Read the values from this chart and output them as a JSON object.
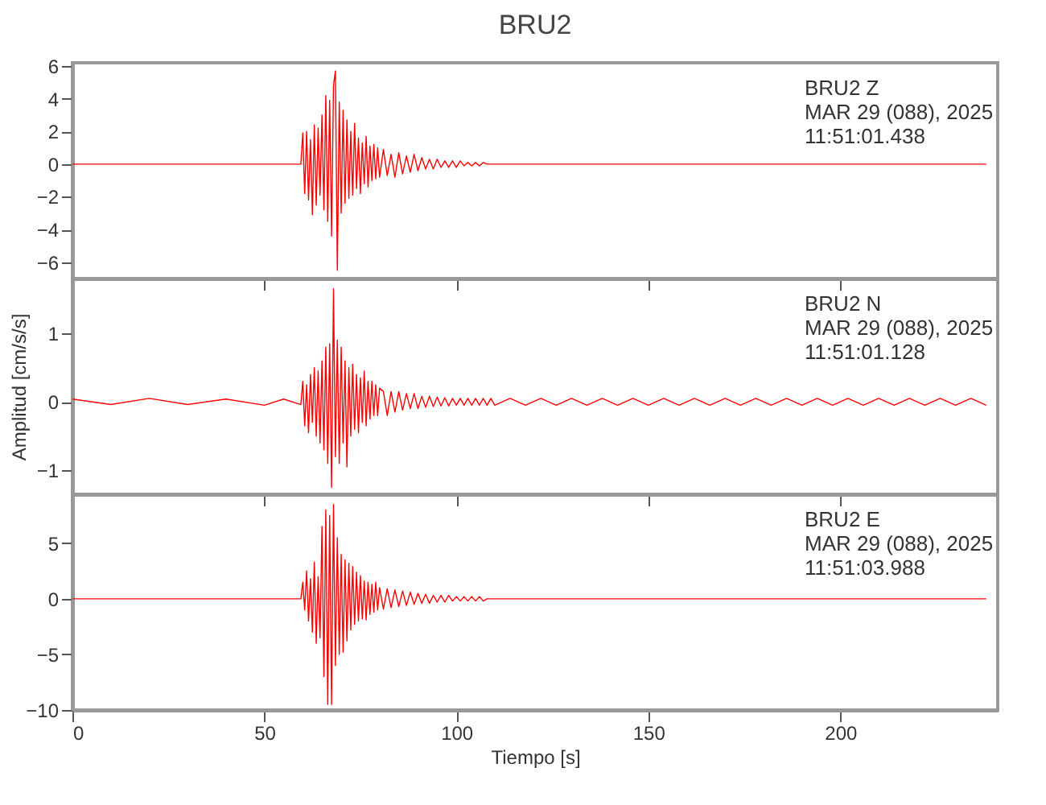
{
  "chart_data": [
    {
      "type": "line",
      "title": "BRU2",
      "annotations": [
        "BRU2   Z",
        "MAR 29 (088), 2025",
        "11:51:01.438"
      ],
      "xlim": [
        0,
        241
      ],
      "xticks": [
        0,
        50,
        100,
        150,
        200
      ],
      "ylim": [
        -7,
        6.2
      ],
      "yticks": [
        -6,
        -4,
        -2,
        0,
        2,
        4,
        6
      ],
      "tick_labels": "y",
      "grid": false,
      "x": [
        0,
        10,
        20,
        30,
        40,
        50,
        55,
        59.5,
        60,
        60.5,
        61,
        61.5,
        62,
        62.5,
        63,
        63.5,
        64,
        64.5,
        65,
        65.5,
        66,
        66.5,
        67,
        67.5,
        68,
        68.5,
        69,
        69.5,
        70,
        70.5,
        71,
        71.5,
        72,
        72.5,
        73,
        73.5,
        74,
        74.5,
        75,
        75.5,
        76,
        76.5,
        77,
        77.5,
        78,
        78.5,
        79,
        79.5,
        80,
        81,
        82,
        83,
        84,
        85,
        86,
        87,
        88,
        89,
        90,
        91,
        92,
        93,
        94,
        95,
        96,
        97,
        98,
        99,
        100,
        101,
        102,
        103,
        104,
        105,
        106,
        107,
        108,
        109,
        110,
        114,
        118,
        122,
        126,
        130,
        134,
        138,
        142,
        146,
        150,
        154,
        158,
        162,
        166,
        170,
        174,
        178,
        182,
        186,
        190,
        194,
        198,
        202,
        206,
        210,
        214,
        218,
        222,
        226,
        230,
        234,
        238
      ],
      "series": [
        {
          "color": "#ff0000",
          "values": [
            0,
            0,
            0,
            0,
            0,
            0,
            0,
            0,
            1.9,
            -1.8,
            2.0,
            -2.2,
            1.5,
            -3.1,
            2.4,
            -2.5,
            2.2,
            -1.9,
            3.0,
            -2.8,
            4.2,
            -3.5,
            3.9,
            -4.4,
            4.8,
            5.7,
            -6.5,
            3.8,
            -3.0,
            3.3,
            -2.4,
            2.7,
            -2.1,
            2.0,
            -1.9,
            2.5,
            -1.5,
            1.6,
            -1.8,
            1.3,
            -1.2,
            1.7,
            -1.4,
            1.1,
            -1.0,
            1.2,
            -0.9,
            1.0,
            -0.8,
            0.9,
            -0.7,
            0.6,
            -0.8,
            0.7,
            -0.6,
            0.5,
            -0.5,
            0.6,
            -0.4,
            0.4,
            -0.3,
            0.3,
            -0.3,
            0.3,
            -0.2,
            0.2,
            -0.2,
            0.2,
            -0.2,
            0.2,
            -0.1,
            0.1,
            -0.1,
            0.1,
            -0.1,
            0.1,
            0,
            0,
            0,
            0,
            0,
            0,
            0,
            0,
            0,
            0,
            0,
            0,
            0,
            0,
            0,
            0,
            0,
            0,
            0,
            0,
            0,
            0,
            0,
            0,
            0,
            0,
            0,
            0,
            0,
            0,
            0,
            0,
            0,
            0,
            0
          ]
        }
      ]
    },
    {
      "type": "line",
      "ylabel": "Amplitud  [cm/s/s]",
      "annotations": [
        "BRU2   N",
        "MAR 29 (088), 2025",
        "11:51:01.128"
      ],
      "xlim": [
        0,
        241
      ],
      "xticks": [
        0,
        50,
        100,
        150,
        200
      ],
      "ylim": [
        -1.35,
        1.8
      ],
      "yticks": [
        -1,
        0,
        1
      ],
      "tick_labels": "y",
      "grid": false,
      "x": [
        0,
        10,
        20,
        30,
        40,
        50,
        55,
        59.5,
        60,
        60.5,
        61,
        61.5,
        62,
        62.5,
        63,
        63.5,
        64,
        64.5,
        65,
        65.5,
        66,
        66.5,
        67,
        67.5,
        68,
        68.5,
        69,
        69.5,
        70,
        70.5,
        71,
        71.5,
        72,
        72.5,
        73,
        73.5,
        74,
        74.5,
        75,
        75.5,
        76,
        76.5,
        77,
        77.5,
        78,
        78.5,
        79,
        79.5,
        80,
        81,
        82,
        83,
        84,
        85,
        86,
        87,
        88,
        89,
        90,
        91,
        92,
        93,
        94,
        95,
        96,
        97,
        98,
        99,
        100,
        101,
        102,
        103,
        104,
        105,
        106,
        107,
        108,
        109,
        110,
        114,
        118,
        122,
        126,
        130,
        134,
        138,
        142,
        146,
        150,
        154,
        158,
        162,
        166,
        170,
        174,
        178,
        182,
        186,
        190,
        194,
        198,
        202,
        206,
        210,
        214,
        218,
        222,
        226,
        230,
        234,
        238
      ],
      "series": [
        {
          "color": "#ff0000",
          "values": [
            0.04,
            -0.04,
            0.05,
            -0.04,
            0.04,
            -0.05,
            0.04,
            -0.04,
            0.3,
            -0.35,
            0.25,
            -0.45,
            0.4,
            -0.3,
            0.5,
            -0.5,
            0.45,
            -0.6,
            0.6,
            -0.7,
            0.8,
            -0.9,
            0.85,
            -1.25,
            1.65,
            -0.8,
            0.9,
            -0.9,
            0.8,
            -0.6,
            0.6,
            -0.95,
            0.5,
            -0.5,
            0.55,
            -0.4,
            0.4,
            -0.45,
            0.35,
            -0.3,
            0.45,
            -0.35,
            0.3,
            -0.25,
            0.3,
            -0.2,
            0.25,
            -0.2,
            0.2,
            0.15,
            -0.2,
            0.15,
            -0.15,
            0.15,
            -0.12,
            0.12,
            -0.1,
            0.12,
            -0.1,
            0.08,
            -0.08,
            0.08,
            -0.07,
            0.07,
            -0.06,
            0.06,
            -0.06,
            0.05,
            -0.05,
            0.05,
            -0.05,
            0.05,
            -0.05,
            0.05,
            -0.05,
            0.05,
            -0.05,
            0.05,
            -0.05,
            0.05,
            -0.05,
            0.05,
            -0.05,
            0.05,
            -0.05,
            0.05,
            -0.05,
            0.05,
            -0.05,
            0.05,
            -0.05,
            0.05,
            -0.05,
            0.05,
            -0.05,
            0.05,
            -0.05,
            0.05,
            -0.05,
            0.05,
            -0.05,
            0.05,
            -0.05,
            0.05,
            -0.05,
            0.05,
            -0.05,
            0.05,
            -0.05,
            0.05,
            -0.05
          ]
        }
      ]
    },
    {
      "type": "line",
      "xlabel": "Tiempo  [s]",
      "annotations": [
        "BRU2   E",
        "MAR 29 (088), 2025",
        "11:51:03.988"
      ],
      "xlim": [
        0,
        241
      ],
      "xticks": [
        0,
        50,
        100,
        150,
        200
      ],
      "ylim": [
        -10,
        9.4
      ],
      "yticks": [
        -10,
        -5,
        0,
        5
      ],
      "grid": false,
      "x": [
        0,
        10,
        20,
        30,
        40,
        50,
        55,
        59.5,
        60,
        60.5,
        61,
        61.5,
        62,
        62.5,
        63,
        63.5,
        64,
        64.5,
        65,
        65.5,
        66,
        66.5,
        67,
        67.5,
        68,
        68.5,
        69,
        69.5,
        70,
        70.5,
        71,
        71.5,
        72,
        72.5,
        73,
        73.5,
        74,
        74.5,
        75,
        75.5,
        76,
        76.5,
        77,
        77.5,
        78,
        78.5,
        79,
        79.5,
        80,
        81,
        82,
        83,
        84,
        85,
        86,
        87,
        88,
        89,
        90,
        91,
        92,
        93,
        94,
        95,
        96,
        97,
        98,
        99,
        100,
        101,
        102,
        103,
        104,
        105,
        106,
        107,
        108,
        109,
        110,
        114,
        118,
        122,
        126,
        130,
        134,
        138,
        142,
        146,
        150,
        154,
        158,
        162,
        166,
        170,
        174,
        178,
        182,
        186,
        190,
        194,
        198,
        202,
        206,
        210,
        214,
        218,
        222,
        226,
        230,
        234,
        238
      ],
      "series": [
        {
          "color": "#ff0000",
          "values": [
            0,
            0,
            0,
            0,
            0,
            0,
            0,
            0,
            1.5,
            -1.0,
            2.5,
            -2.0,
            1.8,
            -3.0,
            3.3,
            -4.0,
            2.0,
            -3.5,
            6.5,
            -7.0,
            8.0,
            -9.5,
            7.5,
            -9.5,
            8.5,
            -6.0,
            5.5,
            -5.0,
            4.0,
            -4.8,
            3.5,
            -3.8,
            3.2,
            -2.8,
            2.9,
            -2.3,
            2.4,
            -2.0,
            2.1,
            -1.8,
            1.6,
            -1.9,
            1.5,
            -1.4,
            1.3,
            -1.2,
            1.5,
            -1.0,
            1.0,
            -0.9,
            0.9,
            -0.8,
            0.8,
            -0.7,
            0.7,
            -0.6,
            0.6,
            -0.5,
            0.5,
            -0.4,
            0.4,
            -0.4,
            0.3,
            -0.3,
            0.3,
            -0.3,
            0.3,
            -0.2,
            0.2,
            -0.2,
            0.2,
            -0.2,
            0.2,
            -0.2,
            0.2,
            -0.2,
            0,
            0,
            0,
            0,
            0,
            0,
            0,
            0,
            0,
            0,
            0,
            0,
            0,
            0,
            0,
            0,
            0,
            0,
            0,
            0,
            0,
            0,
            0,
            0,
            0,
            0,
            0,
            0,
            0,
            0,
            0,
            0,
            0,
            0,
            0
          ]
        }
      ]
    }
  ]
}
